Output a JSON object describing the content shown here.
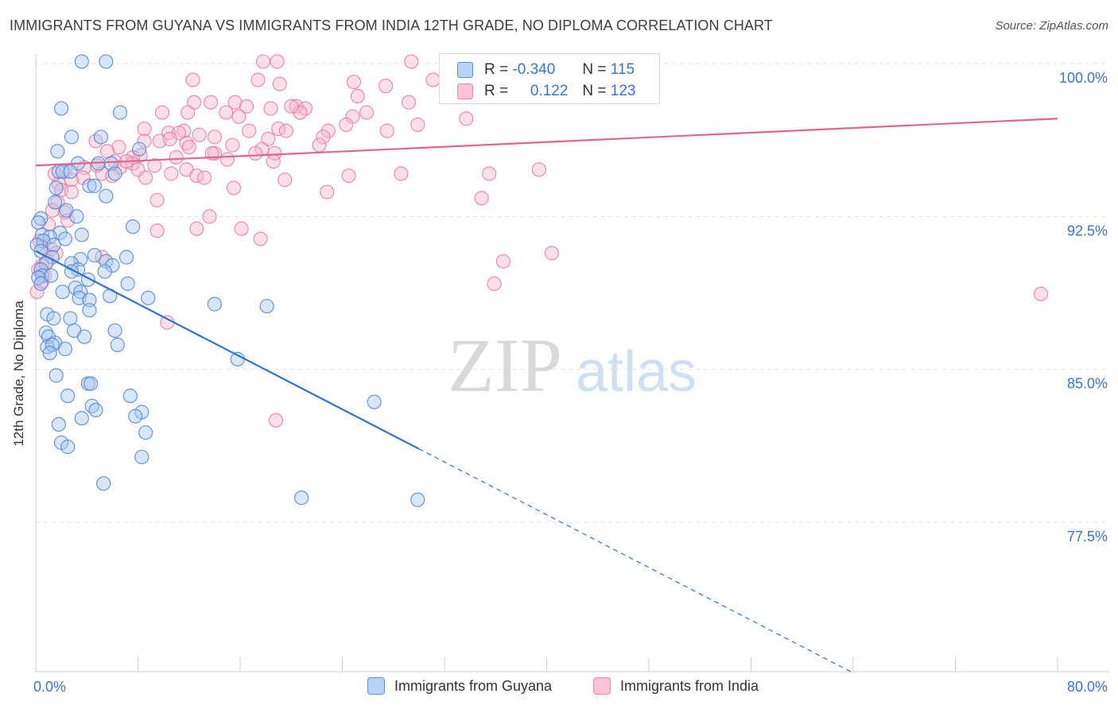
{
  "header": {
    "title": "IMMIGRANTS FROM GUYANA VS IMMIGRANTS FROM INDIA 12TH GRADE, NO DIPLOMA CORRELATION CHART",
    "source": "Source: ZipAtlas.com"
  },
  "legend": {
    "r_label": "R =",
    "n_label": "N =",
    "rows": [
      {
        "r": "-0.340",
        "n": "115"
      },
      {
        "r": "0.122",
        "n": "123"
      }
    ]
  },
  "watermark": {
    "zip": "ZIP",
    "atlas": "atlas"
  },
  "colors": {
    "guyana_fill": "#a9c8f0",
    "guyana_stroke": "#4f86d2",
    "guyana_line": "#2f72cf",
    "india_fill": "#f6b8cd",
    "india_stroke": "#e97aa0",
    "india_line": "#e06690",
    "tick_label": "#3b73c6",
    "grid": "#e2e2e2"
  },
  "chart_data": {
    "type": "scatter",
    "title": "IMMIGRANTS FROM GUYANA VS IMMIGRANTS FROM INDIA 12TH GRADE, NO DIPLOMA CORRELATION CHART",
    "xlabel": "",
    "ylabel": "12th Grade, No Diploma",
    "xlim": [
      0,
      80
    ],
    "ylim": [
      70,
      101.5
    ],
    "x_tick_labels": [
      "0.0%",
      "80.0%"
    ],
    "y_ticks": [
      77.5,
      85.0,
      92.5,
      100.0
    ],
    "y_tick_labels": [
      "77.5%",
      "85.0%",
      "92.5%",
      "100.0%"
    ],
    "grid": true,
    "series": [
      {
        "name": "Immigrants from Guyana",
        "r": -0.34,
        "n": 115,
        "trend": {
          "x0": 0,
          "y0": 90.8,
          "x1": 30,
          "y1": 81.1,
          "dash_to_x": 64
        },
        "points": [
          [
            3.6,
            100.1
          ],
          [
            5.5,
            100.1
          ],
          [
            2,
            97.8
          ],
          [
            6.6,
            97.6
          ],
          [
            2.8,
            96.4
          ],
          [
            5.1,
            96.4
          ],
          [
            1.7,
            95.7
          ],
          [
            8.1,
            95.8
          ],
          [
            3.3,
            95.1
          ],
          [
            4.9,
            95.1
          ],
          [
            5.9,
            95.1
          ],
          [
            1.8,
            94.7
          ],
          [
            2.1,
            94.7
          ],
          [
            2.7,
            94.7
          ],
          [
            6.2,
            94.6
          ],
          [
            4.2,
            94.0
          ],
          [
            4.6,
            94.0
          ],
          [
            1.6,
            93.9
          ],
          [
            5.5,
            93.5
          ],
          [
            1.5,
            93.2
          ],
          [
            2.4,
            92.8
          ],
          [
            3.2,
            92.5
          ],
          [
            0.4,
            92.4
          ],
          [
            0.2,
            92.2
          ],
          [
            7.6,
            92.0
          ],
          [
            1.9,
            91.7
          ],
          [
            3.6,
            91.6
          ],
          [
            0.5,
            91.6
          ],
          [
            1.1,
            91.5
          ],
          [
            2.3,
            91.4
          ],
          [
            0.6,
            91.3
          ],
          [
            0.1,
            91.1
          ],
          [
            1.4,
            91.1
          ],
          [
            0.4,
            90.8
          ],
          [
            4.6,
            90.6
          ],
          [
            7.1,
            90.5
          ],
          [
            1.3,
            90.5
          ],
          [
            3.5,
            90.4
          ],
          [
            5.5,
            90.3
          ],
          [
            0.8,
            90.2
          ],
          [
            2.8,
            90.2
          ],
          [
            6.0,
            90.1
          ],
          [
            0.4,
            89.9
          ],
          [
            3.3,
            89.9
          ],
          [
            5.4,
            89.8
          ],
          [
            2.8,
            89.8
          ],
          [
            0.5,
            89.6
          ],
          [
            1.2,
            89.6
          ],
          [
            0.2,
            89.5
          ],
          [
            4.1,
            89.4
          ],
          [
            7.2,
            89.2
          ],
          [
            0.4,
            89.2
          ],
          [
            3.1,
            89.0
          ],
          [
            2.1,
            88.8
          ],
          [
            3.5,
            88.8
          ],
          [
            5.8,
            88.6
          ],
          [
            3.4,
            88.5
          ],
          [
            4.2,
            88.4
          ],
          [
            8.8,
            88.5
          ],
          [
            14,
            88.2
          ],
          [
            18.1,
            88.1
          ],
          [
            4.2,
            87.9
          ],
          [
            0.9,
            87.7
          ],
          [
            1.4,
            87.5
          ],
          [
            2.7,
            87.5
          ],
          [
            3.0,
            86.9
          ],
          [
            6.2,
            86.9
          ],
          [
            0.8,
            86.8
          ],
          [
            1.0,
            86.6
          ],
          [
            3.8,
            86.6
          ],
          [
            1.5,
            86.3
          ],
          [
            0.9,
            86.1
          ],
          [
            1.3,
            86.2
          ],
          [
            6.4,
            86.2
          ],
          [
            2.3,
            86.0
          ],
          [
            1.1,
            85.8
          ],
          [
            15.8,
            85.5
          ],
          [
            1.6,
            84.7
          ],
          [
            4.1,
            84.3
          ],
          [
            4.3,
            84.3
          ],
          [
            2.5,
            83.7
          ],
          [
            7.4,
            83.7
          ],
          [
            26.5,
            83.4
          ],
          [
            4.4,
            83.2
          ],
          [
            4.7,
            83.0
          ],
          [
            8.3,
            82.9
          ],
          [
            7.8,
            82.7
          ],
          [
            3.6,
            82.6
          ],
          [
            1.8,
            82.3
          ],
          [
            8.6,
            81.9
          ],
          [
            2.0,
            81.4
          ],
          [
            2.5,
            81.2
          ],
          [
            8.3,
            80.7
          ],
          [
            5.3,
            79.4
          ],
          [
            20.8,
            78.7
          ],
          [
            29.9,
            78.6
          ]
        ]
      },
      {
        "name": "Immigrants from India",
        "r": 0.122,
        "n": 123,
        "trend": {
          "x0": 0,
          "y0": 95.0,
          "x1": 80,
          "y1": 97.3
        },
        "points": [
          [
            17.8,
            100.1
          ],
          [
            18.9,
            100.1
          ],
          [
            29.4,
            100.1
          ],
          [
            12.3,
            99.2
          ],
          [
            17.4,
            99.2
          ],
          [
            19.1,
            99.0
          ],
          [
            24.9,
            99.1
          ],
          [
            27.4,
            98.9
          ],
          [
            31.1,
            99.2
          ],
          [
            32.3,
            99.1
          ],
          [
            25.2,
            98.4
          ],
          [
            29.2,
            98.1
          ],
          [
            12.4,
            98.1
          ],
          [
            13.7,
            98.1
          ],
          [
            15.6,
            98.1
          ],
          [
            16.5,
            97.9
          ],
          [
            18.4,
            97.8
          ],
          [
            20.4,
            97.9
          ],
          [
            21.1,
            97.8
          ],
          [
            9.9,
            97.6
          ],
          [
            14.9,
            97.6
          ],
          [
            11.9,
            97.6
          ],
          [
            15.9,
            97.4
          ],
          [
            20.7,
            97.6
          ],
          [
            24.8,
            97.4
          ],
          [
            33.7,
            97.3
          ],
          [
            24.3,
            97.0
          ],
          [
            29.9,
            97.0
          ],
          [
            8.5,
            96.8
          ],
          [
            11.6,
            96.7
          ],
          [
            16.7,
            96.7
          ],
          [
            19.0,
            96.8
          ],
          [
            22.9,
            96.7
          ],
          [
            27.5,
            96.7
          ],
          [
            10.4,
            96.6
          ],
          [
            11.2,
            96.6
          ],
          [
            12.8,
            96.5
          ],
          [
            14.0,
            96.4
          ],
          [
            18.2,
            96.3
          ],
          [
            22.5,
            96.4
          ],
          [
            4.7,
            96.2
          ],
          [
            8.5,
            96.2
          ],
          [
            9.7,
            96.2
          ],
          [
            10.5,
            96.3
          ],
          [
            11.8,
            96.1
          ],
          [
            15.4,
            96.0
          ],
          [
            17.7,
            95.8
          ],
          [
            22.2,
            96.0
          ],
          [
            6.5,
            95.9
          ],
          [
            12.0,
            95.9
          ],
          [
            14.0,
            95.6
          ],
          [
            17.2,
            95.6
          ],
          [
            18.7,
            95.6
          ],
          [
            13.8,
            95.6
          ],
          [
            5.6,
            95.7
          ],
          [
            8.2,
            95.5
          ],
          [
            7.6,
            95.4
          ],
          [
            11.0,
            95.4
          ],
          [
            15.0,
            95.3
          ],
          [
            18.6,
            95.2
          ],
          [
            6.2,
            95.2
          ],
          [
            7.6,
            95.1
          ],
          [
            9.3,
            95.0
          ],
          [
            3.8,
            94.9
          ],
          [
            4.8,
            95.0
          ],
          [
            6.6,
            94.9
          ],
          [
            8.0,
            94.8
          ],
          [
            11.8,
            94.8
          ],
          [
            2.3,
            94.7
          ],
          [
            5.2,
            94.6
          ],
          [
            10.6,
            94.6
          ],
          [
            12.6,
            94.5
          ],
          [
            13.2,
            94.4
          ],
          [
            19.5,
            94.3
          ],
          [
            24.5,
            94.5
          ],
          [
            28.6,
            94.6
          ],
          [
            35.5,
            94.6
          ],
          [
            39.4,
            94.8
          ],
          [
            6.0,
            94.5
          ],
          [
            3.7,
            94.4
          ],
          [
            2.8,
            94.3
          ],
          [
            8.6,
            94.4
          ],
          [
            1.8,
            94.1
          ],
          [
            2.0,
            93.8
          ],
          [
            15.5,
            93.9
          ],
          [
            22.8,
            93.7
          ],
          [
            34.9,
            93.4
          ],
          [
            9.5,
            93.3
          ],
          [
            1.7,
            93.2
          ],
          [
            1.3,
            92.8
          ],
          [
            2.3,
            92.7
          ],
          [
            13.6,
            92.5
          ],
          [
            2.5,
            92.3
          ],
          [
            12.6,
            91.9
          ],
          [
            16.1,
            91.9
          ],
          [
            9.5,
            91.8
          ],
          [
            17.6,
            91.4
          ],
          [
            0.3,
            91.3
          ],
          [
            0.5,
            91.0
          ],
          [
            1.2,
            90.9
          ],
          [
            1.6,
            90.7
          ],
          [
            40.4,
            90.7
          ],
          [
            5.2,
            90.5
          ],
          [
            0.9,
            90.3
          ],
          [
            36.6,
            90.3
          ],
          [
            0.5,
            90.1
          ],
          [
            0.2,
            89.9
          ],
          [
            0.7,
            89.6
          ],
          [
            0.5,
            89.3
          ],
          [
            35.9,
            89.2
          ],
          [
            0.1,
            88.8
          ],
          [
            78.7,
            88.7
          ],
          [
            10.3,
            87.3
          ],
          [
            18.8,
            82.5
          ],
          [
            1.0,
            92.1
          ],
          [
            7.1,
            95.2
          ],
          [
            19.6,
            96.7
          ],
          [
            20.0,
            97.9
          ],
          [
            25.9,
            97.6
          ],
          [
            2.8,
            93.7
          ],
          [
            1.5,
            94.6
          ]
        ]
      }
    ]
  }
}
